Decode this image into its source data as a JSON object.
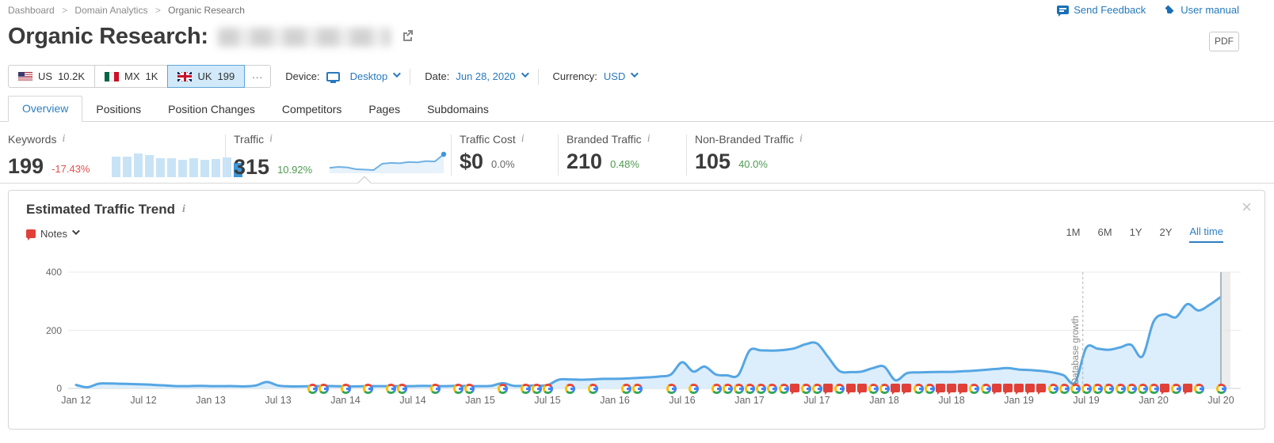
{
  "breadcrumb": {
    "items": [
      "Dashboard",
      "Domain Analytics",
      "Organic Research"
    ]
  },
  "header_links": {
    "feedback": "Send Feedback",
    "manual": "User manual"
  },
  "page": {
    "title": "Organic Research:",
    "pdf_button": "PDF"
  },
  "filters": {
    "countries": [
      {
        "code": "us",
        "label": "US",
        "value": "10.2K",
        "selected": false
      },
      {
        "code": "mx",
        "label": "MX",
        "value": "1K",
        "selected": false
      },
      {
        "code": "uk",
        "label": "UK",
        "value": "199",
        "selected": true
      }
    ],
    "more": "...",
    "device_label": "Device:",
    "device_value": "Desktop",
    "date_label": "Date:",
    "date_value": "Jun 28, 2020",
    "currency_label": "Currency:",
    "currency_value": "USD"
  },
  "tabs": {
    "items": [
      "Overview",
      "Positions",
      "Position Changes",
      "Competitors",
      "Pages",
      "Subdomains"
    ],
    "active": "Overview"
  },
  "metrics": [
    {
      "label": "Keywords",
      "value": "199",
      "delta": "-17.43%"
    },
    {
      "label": "Traffic",
      "value": "315",
      "delta": "10.92%"
    },
    {
      "label": "Traffic Cost",
      "value": "$0",
      "delta": "0.0%"
    },
    {
      "label": "Branded Traffic",
      "value": "210",
      "delta": "0.48%"
    },
    {
      "label": "Non-Branded Traffic",
      "value": "105",
      "delta": "40.0%"
    }
  ],
  "keywords_bars": [
    26,
    26,
    30,
    28,
    24,
    24,
    22,
    24,
    22,
    23,
    25,
    18
  ],
  "traffic_spark": [
    55,
    57,
    56,
    52,
    51,
    50,
    64,
    66,
    65,
    68,
    67,
    70,
    69,
    85
  ],
  "panel": {
    "title": "Estimated Traffic Trend",
    "notes_label": "Notes",
    "ranges": [
      "1M",
      "6M",
      "1Y",
      "2Y",
      "All time"
    ],
    "active_range": "All time",
    "annotation_label": "Database growth"
  },
  "chart_data": {
    "type": "area",
    "title": "Estimated Traffic Trend",
    "xlabel": "",
    "ylabel": "",
    "ylim": [
      0,
      400
    ],
    "yticks": [
      0,
      200,
      400
    ],
    "grid": true,
    "tick_labels": [
      "Jan 12",
      "Jul 12",
      "Jan 13",
      "Jul 13",
      "Jan 14",
      "Jul 14",
      "Jan 15",
      "Jul 15",
      "Jan 16",
      "Jul 16",
      "Jan 17",
      "Jul 17",
      "Jan 18",
      "Jul 18",
      "Jan 19",
      "Jul 19",
      "Jan 20",
      "Jul 20"
    ],
    "x_months_start": "Jan 2012",
    "monthly_values": [
      12,
      4,
      16,
      17,
      16,
      15,
      14,
      12,
      10,
      8,
      8,
      9,
      8,
      8,
      8,
      7,
      10,
      22,
      10,
      7,
      7,
      8,
      8,
      8,
      7,
      7,
      8,
      8,
      8,
      8,
      8,
      9,
      8,
      8,
      9,
      8,
      8,
      9,
      18,
      9,
      9,
      10,
      11,
      30,
      31,
      30,
      31,
      33,
      33,
      34,
      36,
      38,
      41,
      48,
      90,
      58,
      75,
      48,
      45,
      46,
      130,
      131,
      130,
      132,
      138,
      152,
      155,
      108,
      60,
      56,
      58,
      70,
      75,
      28,
      52,
      55,
      56,
      57,
      57,
      59,
      61,
      64,
      67,
      70,
      65,
      63,
      60,
      55,
      45,
      20,
      140,
      137,
      133,
      141,
      150,
      110,
      230,
      255,
      245,
      290,
      268,
      288,
      315
    ],
    "annotation": {
      "label": "Database growth",
      "month_index": 89.7
    },
    "markers": [
      [
        21,
        "g"
      ],
      [
        22,
        "g"
      ],
      [
        24,
        "g"
      ],
      [
        26,
        "g"
      ],
      [
        28,
        "g"
      ],
      [
        29,
        "g"
      ],
      [
        32,
        "g"
      ],
      [
        34,
        "g"
      ],
      [
        35,
        "g"
      ],
      [
        38,
        "g"
      ],
      [
        40,
        "g"
      ],
      [
        41,
        "g"
      ],
      [
        42,
        "g"
      ],
      [
        44,
        "g"
      ],
      [
        46,
        "g"
      ],
      [
        49,
        "g"
      ],
      [
        50,
        "g"
      ],
      [
        53,
        "g"
      ],
      [
        55,
        "g"
      ],
      [
        57,
        "g"
      ],
      [
        58,
        "g"
      ],
      [
        59,
        "g"
      ],
      [
        60,
        "g"
      ],
      [
        61,
        "g"
      ],
      [
        62,
        "g"
      ],
      [
        63,
        "g"
      ],
      [
        64,
        "n"
      ],
      [
        65,
        "g"
      ],
      [
        66,
        "g"
      ],
      [
        67,
        "n"
      ],
      [
        68,
        "g"
      ],
      [
        69,
        "n"
      ],
      [
        70,
        "n"
      ],
      [
        71,
        "g"
      ],
      [
        72,
        "g"
      ],
      [
        73,
        "n"
      ],
      [
        74,
        "n"
      ],
      [
        75,
        "g"
      ],
      [
        76,
        "g"
      ],
      [
        77,
        "n"
      ],
      [
        78,
        "n"
      ],
      [
        79,
        "n"
      ],
      [
        80,
        "g"
      ],
      [
        81,
        "g"
      ],
      [
        82,
        "n"
      ],
      [
        83,
        "n"
      ],
      [
        84,
        "n"
      ],
      [
        85,
        "n"
      ],
      [
        86,
        "n"
      ],
      [
        87,
        "g"
      ],
      [
        88,
        "g"
      ],
      [
        89,
        "g"
      ],
      [
        90,
        "g"
      ],
      [
        91,
        "g"
      ],
      [
        92,
        "g"
      ],
      [
        93,
        "g"
      ],
      [
        94,
        "g"
      ],
      [
        95,
        "g"
      ],
      [
        96,
        "g"
      ],
      [
        97,
        "n"
      ],
      [
        98,
        "g"
      ],
      [
        99,
        "n"
      ],
      [
        100,
        "g"
      ],
      [
        102,
        "g"
      ]
    ],
    "colors": {
      "line": "#55a6e3",
      "fill": "#dceefb",
      "grid": "#ebebeb",
      "baseline": "#d0d0d0"
    },
    "legend": null
  }
}
